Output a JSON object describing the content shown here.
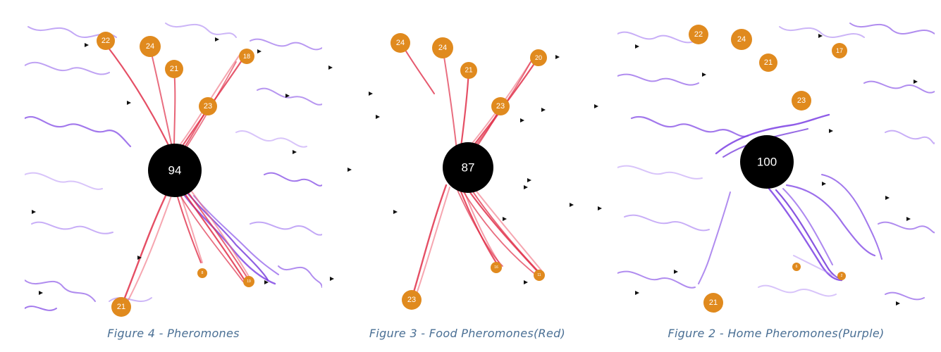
{
  "colors": {
    "home_pheromone": "#7b3fe4",
    "food_pheromone": "#e0304a",
    "food_source": "#e08a1e",
    "nest": "#000000",
    "ant": "#111111",
    "caption": "#4a6f94"
  },
  "panels": [
    {
      "id": "p1",
      "caption": "Figure 4 - Pheromones",
      "nest": {
        "label": "94"
      },
      "food": [
        {
          "label": "22"
        },
        {
          "label": "24"
        },
        {
          "label": "21"
        },
        {
          "label": "18"
        },
        {
          "label": "23"
        },
        {
          "label": "8"
        },
        {
          "label": "19"
        },
        {
          "label": "21"
        }
      ]
    },
    {
      "id": "p2",
      "caption": "Figure 3 - Food Pheromones(Red)",
      "nest": {
        "label": "87"
      },
      "food": [
        {
          "label": "24"
        },
        {
          "label": "24"
        },
        {
          "label": "21"
        },
        {
          "label": "20"
        },
        {
          "label": "23"
        },
        {
          "label": "16"
        },
        {
          "label": "11"
        },
        {
          "label": "23"
        }
      ]
    },
    {
      "id": "p3",
      "caption": "Figure 2 - Home Pheromones(Purple)",
      "nest": {
        "label": "100"
      },
      "food": [
        {
          "label": "22"
        },
        {
          "label": "24"
        },
        {
          "label": "21"
        },
        {
          "label": "17"
        },
        {
          "label": "23"
        },
        {
          "label": "6"
        },
        {
          "label": "2"
        },
        {
          "label": "21"
        }
      ]
    }
  ]
}
